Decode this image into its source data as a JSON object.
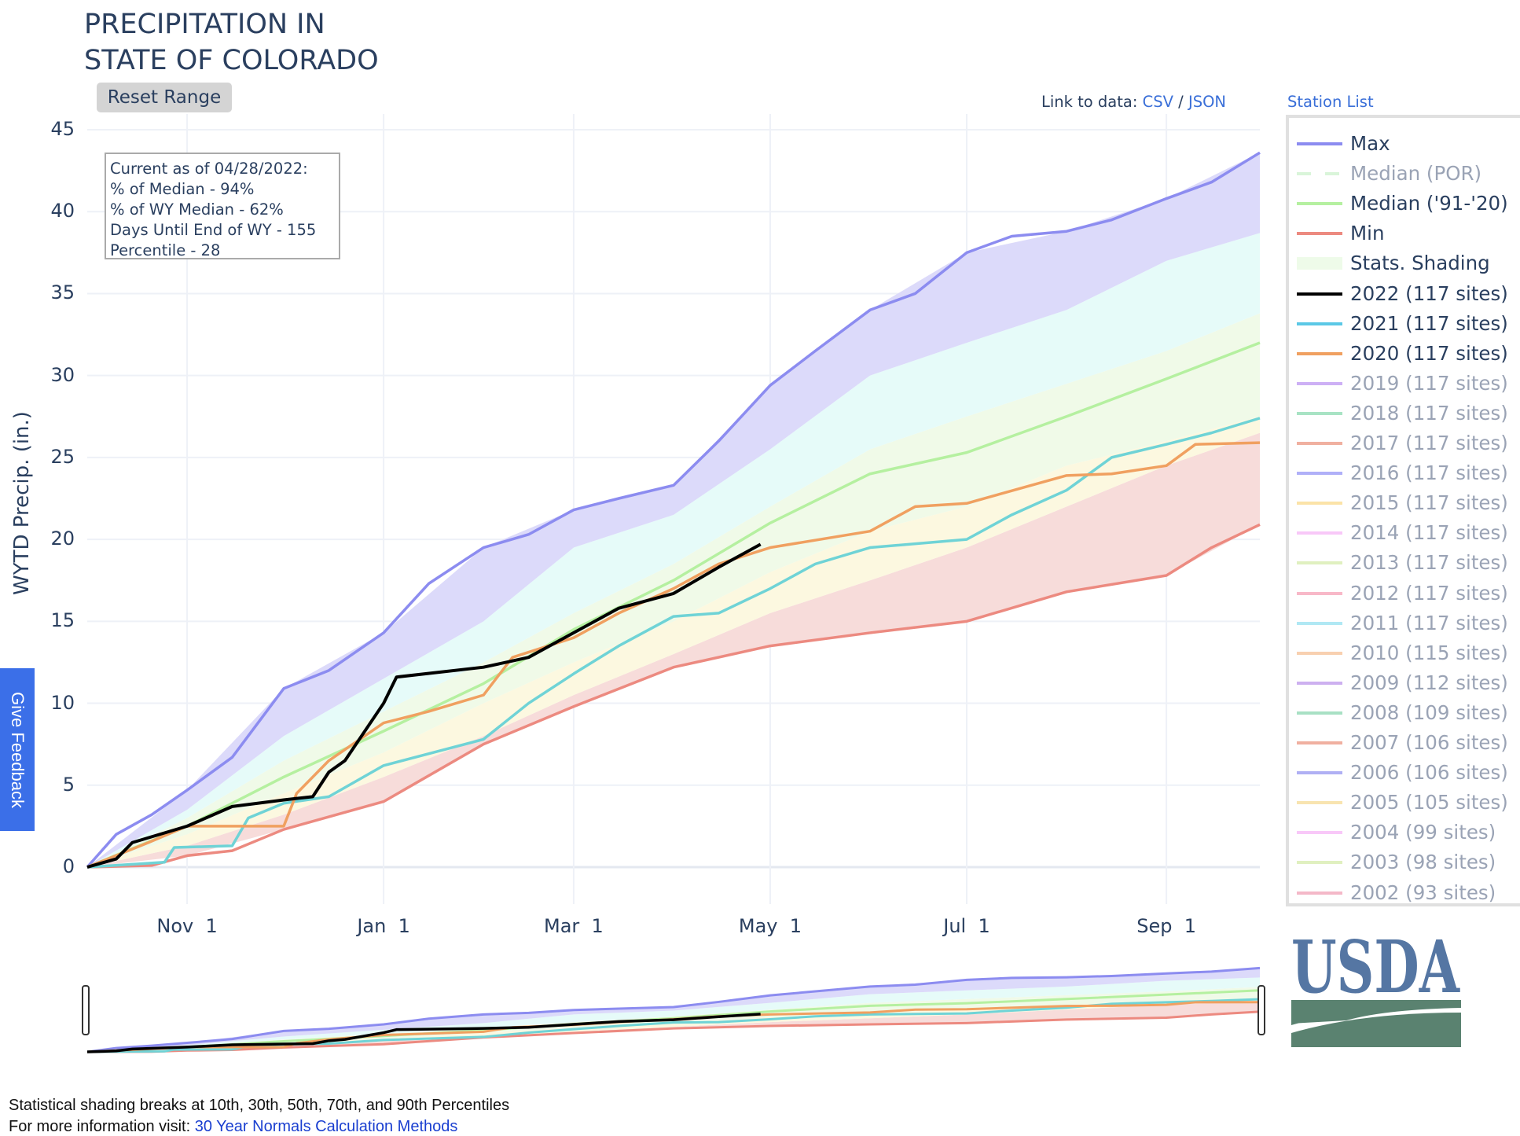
{
  "header": {
    "title_line1": "PRECIPITATION IN",
    "title_line2": "STATE OF COLORADO",
    "reset_label": "Reset Range"
  },
  "links": {
    "prefix": "Link to data:",
    "csv": "CSV",
    "sep": "/",
    "json": "JSON",
    "station_list": "Station List"
  },
  "info_box": [
    "Current as of 04/28/2022:",
    "% of Median - 94%",
    "% of WY Median - 62%",
    "Days Until End of WY - 155",
    "Percentile - 28"
  ],
  "feedback_label": "Give Feedback",
  "footer": {
    "line1": "Statistical shading breaks at 10th, 30th, 50th, 70th, and 90th Percentiles",
    "line2_prefix": "For more information visit:",
    "line2_link": "30 Year Normals Calculation Methods"
  },
  "logo_text": "USDA",
  "legend": [
    {
      "label": "Max",
      "color": "#8c8cf0",
      "active": true,
      "dash": false
    },
    {
      "label": "Median (POR)",
      "color": "#d9f5d9",
      "active": false,
      "dash": true
    },
    {
      "label": "Median ('91-'20)",
      "color": "#b5f0a0",
      "active": true,
      "dash": false
    },
    {
      "label": "Min",
      "color": "#ec8a80",
      "active": true,
      "dash": false
    },
    {
      "label": "Stats. Shading",
      "color": "#eefbe9",
      "active": true,
      "dash": false,
      "block": true
    },
    {
      "label": "2022 (117 sites)",
      "color": "#000000",
      "active": true,
      "dash": false
    },
    {
      "label": "2021 (117 sites)",
      "color": "#5bc8e6",
      "active": true,
      "dash": false
    },
    {
      "label": "2020 (117 sites)",
      "color": "#f0a060",
      "active": true,
      "dash": false
    },
    {
      "label": "2019 (117 sites)",
      "color": "#cdb0f5",
      "active": false
    },
    {
      "label": "2018 (117 sites)",
      "color": "#a8e3c4",
      "active": false
    },
    {
      "label": "2017 (117 sites)",
      "color": "#f0b0a0",
      "active": false
    },
    {
      "label": "2016 (117 sites)",
      "color": "#b0b0f8",
      "active": false
    },
    {
      "label": "2015 (117 sites)",
      "color": "#fbe3a8",
      "active": false
    },
    {
      "label": "2014 (117 sites)",
      "color": "#f8c8f8",
      "active": false
    },
    {
      "label": "2013 (117 sites)",
      "color": "#e0f0c0",
      "active": false
    },
    {
      "label": "2012 (117 sites)",
      "color": "#f8b8c8",
      "active": false
    },
    {
      "label": "2011 (117 sites)",
      "color": "#b0e8f4",
      "active": false
    },
    {
      "label": "2010 (115 sites)",
      "color": "#f8d0b0",
      "active": false
    },
    {
      "label": "2009 (112 sites)",
      "color": "#cdb0f0",
      "active": false
    },
    {
      "label": "2008 (109 sites)",
      "color": "#a8e0c4",
      "active": false
    },
    {
      "label": "2007 (106 sites)",
      "color": "#f0b0a0",
      "active": false
    },
    {
      "label": "2006 (106 sites)",
      "color": "#b0b0f4",
      "active": false
    },
    {
      "label": "2005 (105 sites)",
      "color": "#f8e4b0",
      "active": false
    },
    {
      "label": "2004 (99 sites)",
      "color": "#f8c8f8",
      "active": false
    },
    {
      "label": "2003 (98 sites)",
      "color": "#e0f0c0",
      "active": false
    },
    {
      "label": "2002 (93 sites)",
      "color": "#f4b8c8",
      "active": false
    }
  ],
  "chart_data": {
    "type": "line",
    "title": "PRECIPITATION IN STATE OF COLORADO",
    "xlabel": "",
    "ylabel": "WYTD Precip. (in.)",
    "x_unit": "day of water year (0 = Oct 1)",
    "xlim": [
      0,
      364
    ],
    "ylim": [
      -2.5,
      47
    ],
    "yticks": [
      0,
      5,
      10,
      15,
      20,
      25,
      30,
      35,
      40,
      45
    ],
    "xticks": [
      {
        "day": 31,
        "label": "Nov  1"
      },
      {
        "day": 92,
        "label": "Jan  1"
      },
      {
        "day": 151,
        "label": "Mar  1"
      },
      {
        "day": 212,
        "label": "May  1"
      },
      {
        "day": 273,
        "label": "Jul  1"
      },
      {
        "day": 335,
        "label": "Sep  1"
      }
    ],
    "grid": true,
    "legend_position": "right",
    "bands": {
      "x": [
        0,
        31,
        61,
        92,
        123,
        151,
        182,
        212,
        243,
        273,
        304,
        335,
        364
      ],
      "max": [
        0,
        4.7,
        10.9,
        14.3,
        19.5,
        21.8,
        23.3,
        29.4,
        34,
        37.5,
        38.8,
        40.8,
        43.6
      ],
      "p90": [
        0,
        3.5,
        8,
        11.5,
        15,
        19.5,
        21.5,
        25.5,
        30,
        32,
        34,
        37,
        38.7
      ],
      "p70": [
        0,
        3,
        6.5,
        9.5,
        12.5,
        15.5,
        18.5,
        22,
        25.5,
        27.5,
        29.5,
        31.5,
        33.8
      ],
      "p30": [
        0,
        2,
        4.5,
        7,
        10,
        12.5,
        15,
        18,
        20.5,
        22,
        24.5,
        26,
        27.5
      ],
      "p10": [
        0,
        1.3,
        3.2,
        5.5,
        8,
        10.5,
        13,
        15.5,
        17.5,
        19.5,
        22,
        24.5,
        26.5
      ],
      "min": [
        0,
        0.7,
        2.3,
        4.0,
        7.5,
        9.8,
        12.2,
        13.5,
        14.3,
        15.0,
        16.8,
        17.8,
        20.9
      ]
    },
    "series": [
      {
        "name": "Max",
        "color": "#8c8cf0",
        "points": [
          [
            0,
            0
          ],
          [
            9,
            2
          ],
          [
            20,
            3.2
          ],
          [
            31,
            4.7
          ],
          [
            45,
            6.7
          ],
          [
            61,
            10.9
          ],
          [
            75,
            12
          ],
          [
            92,
            14.3
          ],
          [
            106,
            17.3
          ],
          [
            123,
            19.5
          ],
          [
            137,
            20.3
          ],
          [
            151,
            21.8
          ],
          [
            165,
            22.5
          ],
          [
            182,
            23.3
          ],
          [
            196,
            26
          ],
          [
            212,
            29.4
          ],
          [
            226,
            31.5
          ],
          [
            243,
            34
          ],
          [
            257,
            35
          ],
          [
            273,
            37.5
          ],
          [
            287,
            38.5
          ],
          [
            304,
            38.8
          ],
          [
            318,
            39.5
          ],
          [
            335,
            40.8
          ],
          [
            349,
            41.8
          ],
          [
            364,
            43.6
          ]
        ]
      },
      {
        "name": "Median ('91-'20)",
        "color": "#b5f0a0",
        "points": [
          [
            0,
            0
          ],
          [
            31,
            2.5
          ],
          [
            61,
            5.5
          ],
          [
            92,
            8.3
          ],
          [
            123,
            11.2
          ],
          [
            151,
            14.5
          ],
          [
            182,
            17.5
          ],
          [
            212,
            21
          ],
          [
            243,
            24
          ],
          [
            273,
            25.3
          ],
          [
            304,
            27.5
          ],
          [
            335,
            29.8
          ],
          [
            364,
            32
          ]
        ]
      },
      {
        "name": "Min",
        "color": "#ec8a80",
        "points": [
          [
            0,
            0
          ],
          [
            20,
            0.1
          ],
          [
            31,
            0.7
          ],
          [
            45,
            1
          ],
          [
            61,
            2.3
          ],
          [
            92,
            4
          ],
          [
            123,
            7.5
          ],
          [
            151,
            9.8
          ],
          [
            182,
            12.2
          ],
          [
            212,
            13.5
          ],
          [
            243,
            14.3
          ],
          [
            273,
            15
          ],
          [
            304,
            16.8
          ],
          [
            335,
            17.8
          ],
          [
            349,
            19.5
          ],
          [
            364,
            20.9
          ]
        ]
      },
      {
        "name": "2021 (117 sites)",
        "color": "#6fd3d6",
        "points": [
          [
            0,
            0
          ],
          [
            24,
            0.3
          ],
          [
            27,
            1.2
          ],
          [
            45,
            1.3
          ],
          [
            50,
            3
          ],
          [
            61,
            3.9
          ],
          [
            75,
            4.3
          ],
          [
            92,
            6.2
          ],
          [
            123,
            7.8
          ],
          [
            137,
            10
          ],
          [
            151,
            11.8
          ],
          [
            165,
            13.5
          ],
          [
            182,
            15.3
          ],
          [
            196,
            15.5
          ],
          [
            212,
            17
          ],
          [
            226,
            18.5
          ],
          [
            243,
            19.5
          ],
          [
            273,
            20
          ],
          [
            287,
            21.5
          ],
          [
            304,
            23
          ],
          [
            318,
            25
          ],
          [
            335,
            25.8
          ],
          [
            349,
            26.5
          ],
          [
            364,
            27.4
          ]
        ]
      },
      {
        "name": "2020 (117 sites)",
        "color": "#f0a060",
        "points": [
          [
            0,
            0
          ],
          [
            19,
            1.5
          ],
          [
            31,
            2.5
          ],
          [
            61,
            2.5
          ],
          [
            65,
            4.5
          ],
          [
            75,
            6.5
          ],
          [
            92,
            8.8
          ],
          [
            106,
            9.5
          ],
          [
            123,
            10.5
          ],
          [
            132,
            12.8
          ],
          [
            151,
            14
          ],
          [
            165,
            15.5
          ],
          [
            182,
            17
          ],
          [
            196,
            18.5
          ],
          [
            212,
            19.5
          ],
          [
            243,
            20.5
          ],
          [
            257,
            22
          ],
          [
            273,
            22.2
          ],
          [
            304,
            23.9
          ],
          [
            318,
            24
          ],
          [
            335,
            24.5
          ],
          [
            344,
            25.8
          ],
          [
            364,
            25.9
          ]
        ]
      },
      {
        "name": "2022 (117 sites)",
        "color": "#000000",
        "points": [
          [
            0,
            0
          ],
          [
            9,
            0.5
          ],
          [
            14,
            1.5
          ],
          [
            31,
            2.5
          ],
          [
            45,
            3.7
          ],
          [
            61,
            4.1
          ],
          [
            70,
            4.3
          ],
          [
            75,
            5.8
          ],
          [
            80,
            6.5
          ],
          [
            92,
            10
          ],
          [
            96,
            11.6
          ],
          [
            123,
            12.2
          ],
          [
            137,
            12.8
          ],
          [
            151,
            14.3
          ],
          [
            165,
            15.8
          ],
          [
            182,
            16.7
          ],
          [
            196,
            18.3
          ],
          [
            209,
            19.7
          ]
        ]
      }
    ]
  }
}
